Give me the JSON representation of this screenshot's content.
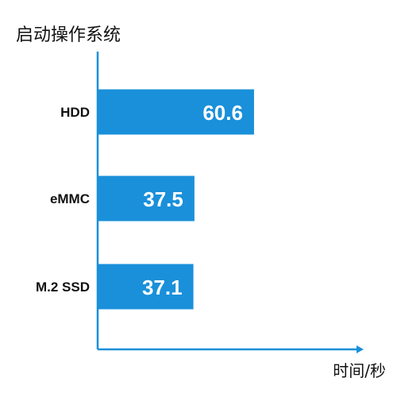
{
  "chart_data": {
    "type": "bar",
    "orientation": "horizontal",
    "title": "启动操作系统",
    "xlabel": "时间/秒",
    "ylabel": "",
    "categories": [
      "HDD",
      "eMMC",
      "M.2 SSD"
    ],
    "values": [
      60.6,
      37.5,
      37.1
    ],
    "xlim": [
      0,
      100
    ],
    "grid": false,
    "data_labels": true,
    "bar_color": "#1a90da",
    "axis_color": "#1a90da"
  }
}
